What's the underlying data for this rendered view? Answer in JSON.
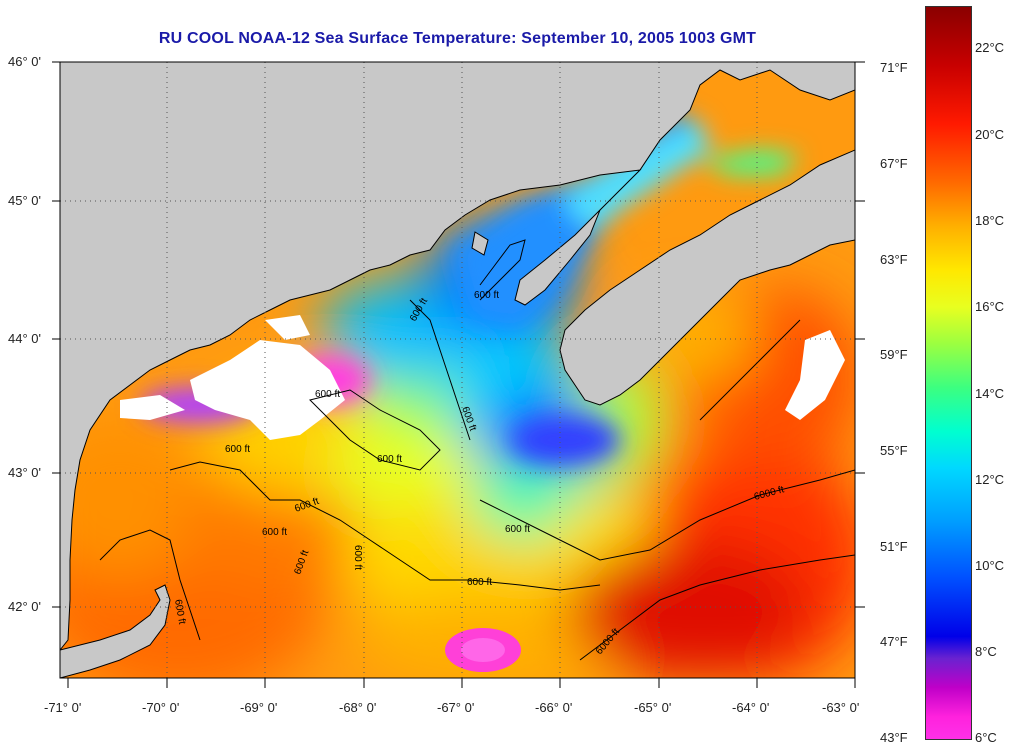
{
  "title": "RU COOL  NOAA-12  Sea Surface Temperature:  September 10, 2005 1003 GMT",
  "latitude_labels": [
    "46° 0'",
    "45° 0'",
    "44° 0'",
    "43° 0'",
    "42° 0'"
  ],
  "longitude_labels": [
    "-71° 0'",
    "-70° 0'",
    "-69° 0'",
    "-68° 0'",
    "-67° 0'",
    "-66° 0'",
    "-65° 0'",
    "-64° 0'",
    "-63° 0'"
  ],
  "contour_labels": [
    "600 ft",
    "600 ft",
    "600 ft",
    "600 ft",
    "600 ft",
    "600 ft",
    "600 ft",
    "600 ft",
    "600 ft",
    "600 ft",
    "600 ft",
    "600 ft",
    "6000 ft",
    "6000 ft",
    "600 ft"
  ],
  "colorbar": {
    "fahrenheit_labels": [
      "71°F",
      "67°F",
      "63°F",
      "59°F",
      "55°F",
      "51°F",
      "47°F",
      "43°F"
    ],
    "celsius_labels": [
      "22°C",
      "20°C",
      "18°C",
      "16°C",
      "14°C",
      "12°C",
      "10°C",
      "8°C",
      "6°C"
    ]
  },
  "colors": {
    "land": "#c8c8c8",
    "cloud": "#ffffff",
    "title": "#1a1aa8"
  }
}
